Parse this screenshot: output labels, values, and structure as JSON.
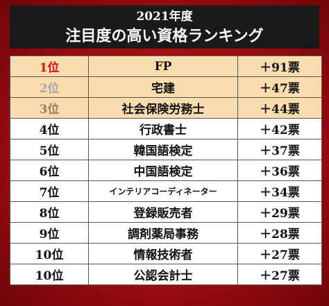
{
  "header": {
    "year": "2021年度",
    "title": "注目度の高い資格ランキング"
  },
  "rows": [
    {
      "rank": "1位",
      "name": "FP",
      "votes": "＋91票"
    },
    {
      "rank": "2位",
      "name": "宅建",
      "votes": "＋47票"
    },
    {
      "rank": "3位",
      "name": "社会保険労務士",
      "votes": "＋44票"
    },
    {
      "rank": "4位",
      "name": "行政書士",
      "votes": "＋42票"
    },
    {
      "rank": "5位",
      "name": "韓国語検定",
      "votes": "＋37票"
    },
    {
      "rank": "6位",
      "name": "中国語検定",
      "votes": "＋36票"
    },
    {
      "rank": "7位",
      "name": "インテリアコーディネーター",
      "votes": "＋34票"
    },
    {
      "rank": "8位",
      "name": "登録販売者",
      "votes": "＋29票"
    },
    {
      "rank": "9位",
      "name": "調剤薬局事務",
      "votes": "＋28票"
    },
    {
      "rank": "10位",
      "name": "情報技術者",
      "votes": "＋27票"
    },
    {
      "rank": "10位",
      "name": "公認会計士",
      "votes": "＋27票"
    }
  ],
  "colors": {
    "background": "#b01214",
    "header": "#1a1a1a",
    "top_rows": "#fbdcae",
    "rank_first": "#d81414",
    "rank_second": "#a8a8a8",
    "rank_third": "#9a7a5a"
  }
}
